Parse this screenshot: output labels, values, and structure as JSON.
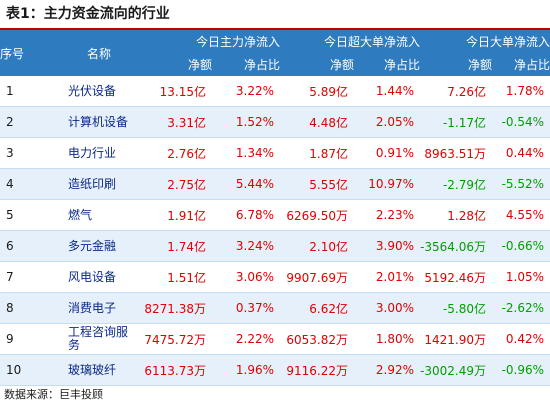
{
  "title": "表1：主力资金流向的行业",
  "header": {
    "idx": "序号",
    "name": "名称",
    "groups": [
      "今日主力净流入",
      "今日超大单净流入",
      "今日大单净流入"
    ],
    "sub": [
      "净额",
      "净占比",
      "净额",
      "净占比",
      "净额",
      "净占比"
    ]
  },
  "rows": [
    {
      "idx": "1",
      "name": "光伏设备",
      "cells": [
        "13.15亿",
        "3.22%",
        "5.89亿",
        "1.44%",
        "7.26亿",
        "1.78%"
      ]
    },
    {
      "idx": "2",
      "name": "计算机设备",
      "cells": [
        "3.31亿",
        "1.52%",
        "4.48亿",
        "2.05%",
        "-1.17亿",
        "-0.54%"
      ]
    },
    {
      "idx": "3",
      "name": "电力行业",
      "cells": [
        "2.76亿",
        "1.34%",
        "1.87亿",
        "0.91%",
        "8963.51万",
        "0.44%"
      ]
    },
    {
      "idx": "4",
      "name": "造纸印刷",
      "cells": [
        "2.75亿",
        "5.44%",
        "5.55亿",
        "10.97%",
        "-2.79亿",
        "-5.52%"
      ]
    },
    {
      "idx": "5",
      "name": "燃气",
      "cells": [
        "1.91亿",
        "6.78%",
        "6269.50万",
        "2.23%",
        "1.28亿",
        "4.55%"
      ]
    },
    {
      "idx": "6",
      "name": "多元金融",
      "cells": [
        "1.74亿",
        "3.24%",
        "2.10亿",
        "3.90%",
        "-3564.06万",
        "-0.66%"
      ]
    },
    {
      "idx": "7",
      "name": "风电设备",
      "cells": [
        "1.51亿",
        "3.06%",
        "9907.69万",
        "2.01%",
        "5192.46万",
        "1.05%"
      ]
    },
    {
      "idx": "8",
      "name": "消费电子",
      "cells": [
        "8271.38万",
        "0.37%",
        "6.62亿",
        "3.00%",
        "-5.80亿",
        "-2.62%"
      ]
    },
    {
      "idx": "9",
      "name": "工程咨询服务",
      "cells": [
        "7475.72万",
        "2.22%",
        "6053.82万",
        "1.80%",
        "1421.90万",
        "0.42%"
      ]
    },
    {
      "idx": "10",
      "name": "玻璃玻纤",
      "cells": [
        "6113.73万",
        "1.96%",
        "9116.22万",
        "2.92%",
        "-3002.49万",
        "-0.96%"
      ]
    }
  ],
  "colors": {
    "positive": "#e00000",
    "negative": "#00a000",
    "header_bg": "#2e7bbf"
  },
  "source": "数据来源：巨丰投顾"
}
